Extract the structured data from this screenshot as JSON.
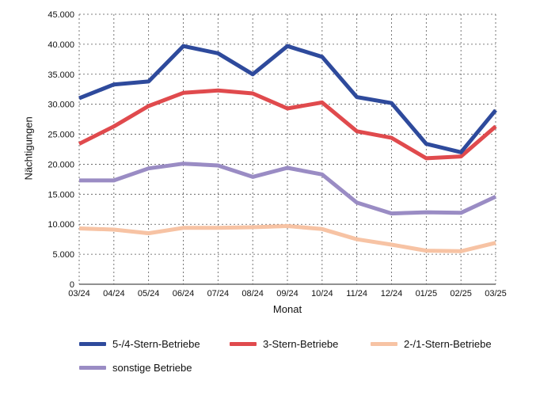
{
  "chart_data": {
    "type": "line",
    "xlabel": "Monat",
    "ylabel": "Nächtigungen",
    "ylim": [
      0,
      45000
    ],
    "yticks": [
      "0",
      "5.000",
      "10.000",
      "15.000",
      "20.000",
      "25.000",
      "30.000",
      "35.000",
      "40.000",
      "45.000"
    ],
    "ytick_values": [
      0,
      5000,
      10000,
      15000,
      20000,
      25000,
      30000,
      35000,
      40000,
      45000
    ],
    "categories": [
      "03/24",
      "04/24",
      "05/24",
      "06/24",
      "07/24",
      "08/24",
      "09/24",
      "10/24",
      "11/24",
      "12/24",
      "01/25",
      "02/25",
      "03/25"
    ],
    "grid": true,
    "legend_position": "bottom",
    "series": [
      {
        "name": "5-/4-Stern-Betriebe",
        "color": "#2e4a9c",
        "values": [
          31000,
          33300,
          33800,
          39700,
          38500,
          35000,
          39700,
          37900,
          31200,
          30200,
          23400,
          22000,
          29000
        ]
      },
      {
        "name": "3-Stern-Betriebe",
        "color": "#e04a4d",
        "values": [
          23400,
          26300,
          29700,
          31900,
          32300,
          31800,
          29300,
          30300,
          25500,
          24400,
          21000,
          21300,
          26300
        ]
      },
      {
        "name": "2-/1-Stern-Betriebe",
        "color": "#f7c3a4",
        "values": [
          9300,
          9100,
          8500,
          9400,
          9400,
          9500,
          9700,
          9200,
          7500,
          6600,
          5600,
          5500,
          6900
        ]
      },
      {
        "name": "sonstige Betriebe",
        "color": "#9a8cc4",
        "values": [
          17300,
          17300,
          19300,
          20100,
          19800,
          17900,
          19400,
          18300,
          13600,
          11800,
          12000,
          11900,
          14600
        ]
      }
    ]
  }
}
